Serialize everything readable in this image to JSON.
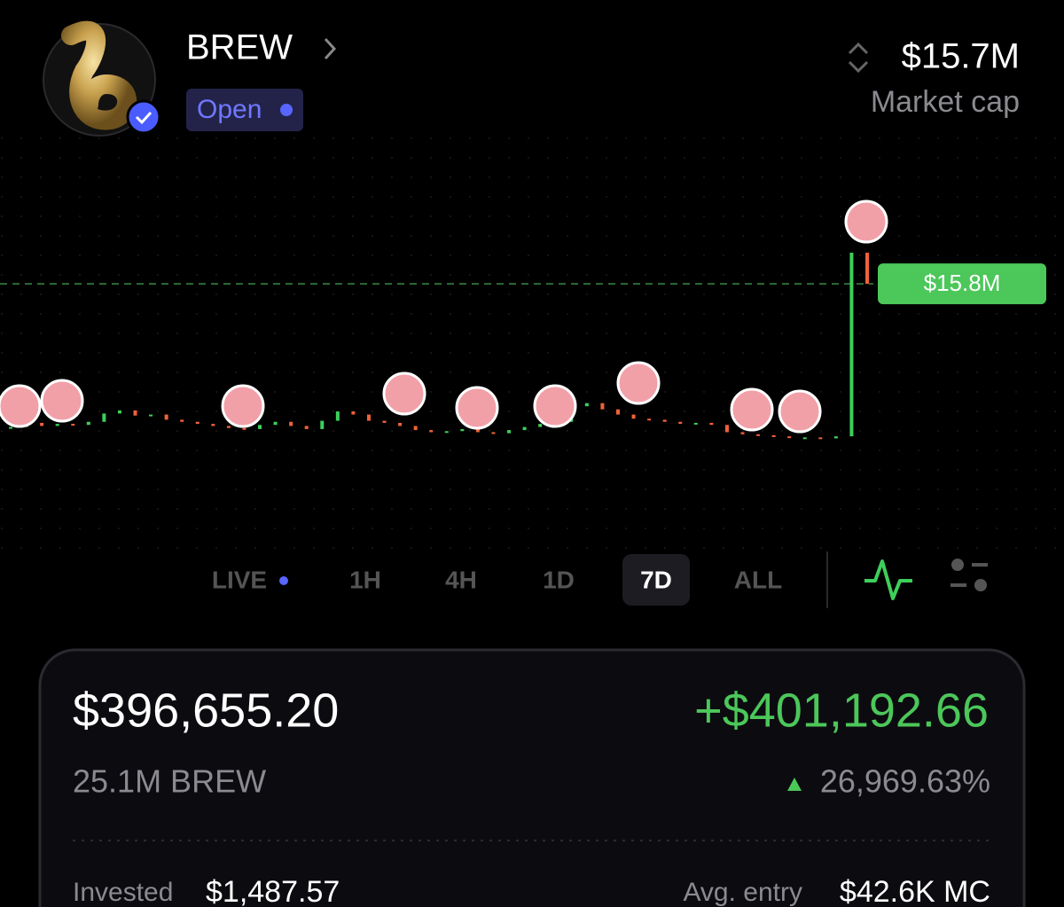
{
  "header": {
    "token": "BREW",
    "status": "Open",
    "market_cap": "$15.7M",
    "market_cap_label": "Market cap"
  },
  "chart": {
    "type": "candlestick",
    "values": [
      2.0,
      2.4,
      2.1,
      2.3,
      2.2,
      2.5,
      3.3,
      3.6,
      3.1,
      3.2,
      2.7,
      2.5,
      2.3,
      2.1,
      1.9,
      1.8,
      2.2,
      2.5,
      2.1,
      1.8,
      2.6,
      3.5,
      3.2,
      2.6,
      2.4,
      2.1,
      1.7,
      1.5,
      1.6,
      1.8,
      1.5,
      1.4,
      1.7,
      2.0,
      2.3,
      2.5,
      4.0,
      4.3,
      3.7,
      3.2,
      2.8,
      2.7,
      2.5,
      2.3,
      2.4,
      2.2,
      1.5,
      1.3,
      1.2,
      1.1,
      1.0,
      1.0,
      0.9,
      1.1,
      18.8,
      15.8
    ],
    "price_line": {
      "value": 15.8,
      "label": "$15.8M"
    }
  },
  "timeframes": [
    "LIVE",
    "1H",
    "4H",
    "1D",
    "7D",
    "ALL"
  ],
  "selected_timeframe": 4,
  "position": {
    "value": "$396,655.20",
    "pnl": "+$401,192.66",
    "amount": "25.1M BREW",
    "pnl_percent": "26,969.63%",
    "invested_label": "Invested",
    "invested": "$1,487.57",
    "avg_entry_label": "Avg. entry",
    "avg_entry": "$42.6K MC"
  }
}
